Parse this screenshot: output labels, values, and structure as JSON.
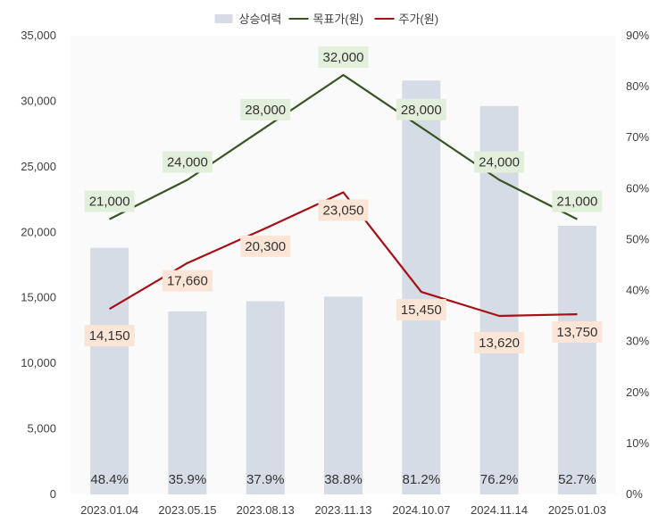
{
  "chart_data": {
    "type": "bar",
    "categories": [
      "2023.01.04",
      "2023.05.15",
      "2023.08.13",
      "2023.11.13",
      "2024.10.07",
      "2024.11.14",
      "2025.01.03"
    ],
    "left_axis": {
      "ylim": [
        0,
        35000
      ],
      "ticks": [
        "0",
        "5,000",
        "10,000",
        "15,000",
        "20,000",
        "25,000",
        "30,000",
        "35,000"
      ]
    },
    "right_axis": {
      "ylim": [
        0,
        0.9
      ],
      "ticks": [
        "0%",
        "10%",
        "20%",
        "30%",
        "40%",
        "50%",
        "60%",
        "70%",
        "80%",
        "90%"
      ]
    },
    "legend_position": "top",
    "grid": false,
    "series": [
      {
        "name": "상승여력",
        "type": "bar",
        "axis": "right",
        "color": "#d6dce5",
        "values": [
          0.484,
          0.359,
          0.379,
          0.388,
          0.812,
          0.762,
          0.527
        ],
        "labels": [
          "48.4%",
          "35.9%",
          "37.9%",
          "38.8%",
          "81.2%",
          "76.2%",
          "52.7%"
        ]
      },
      {
        "name": "목표가(원)",
        "type": "line",
        "axis": "left",
        "color": "#375623",
        "label_bg": "#e2efda",
        "values": [
          21000,
          24000,
          28000,
          32000,
          28000,
          24000,
          21000
        ],
        "labels": [
          "21,000",
          "24,000",
          "28,000",
          "32,000",
          "28,000",
          "24,000",
          "21,000"
        ]
      },
      {
        "name": "주가(원)",
        "type": "line",
        "axis": "left",
        "color": "#a50f15",
        "label_bg": "#fbe5d6",
        "values": [
          14150,
          17660,
          20300,
          23050,
          15450,
          13620,
          13750
        ],
        "labels": [
          "14,150",
          "17,660",
          "20,300",
          "23,050",
          "15,450",
          "13,620",
          "13,750"
        ]
      }
    ]
  }
}
